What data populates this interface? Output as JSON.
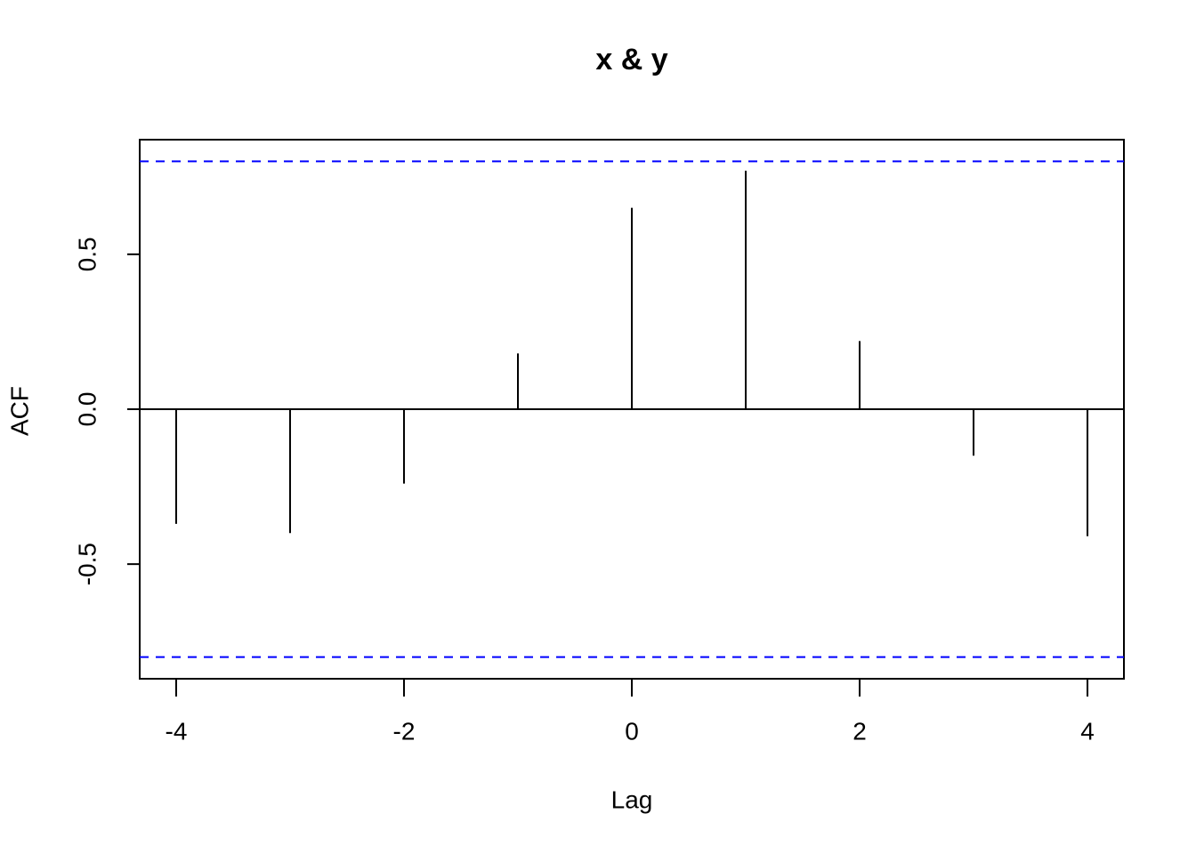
{
  "chart_data": {
    "type": "stem",
    "title": "x & y",
    "xlabel": "Lag",
    "ylabel": "ACF",
    "x": [
      -4,
      -3,
      -2,
      -1,
      0,
      1,
      2,
      3,
      4
    ],
    "values": [
      -0.37,
      -0.4,
      -0.24,
      0.18,
      0.65,
      0.77,
      0.22,
      -0.15,
      -0.41
    ],
    "color": "#000000",
    "ci": [
      0.8,
      -0.8
    ],
    "ci_color": "#0000ff",
    "xlim": [
      -4.32,
      4.32
    ],
    "xticks": [
      -4,
      -2,
      0,
      2,
      4
    ],
    "ylim": [
      -0.87,
      0.87
    ],
    "yticks": [
      -0.5,
      {
        "value": 0,
        "label": "0.0"
      },
      0.5
    ]
  }
}
